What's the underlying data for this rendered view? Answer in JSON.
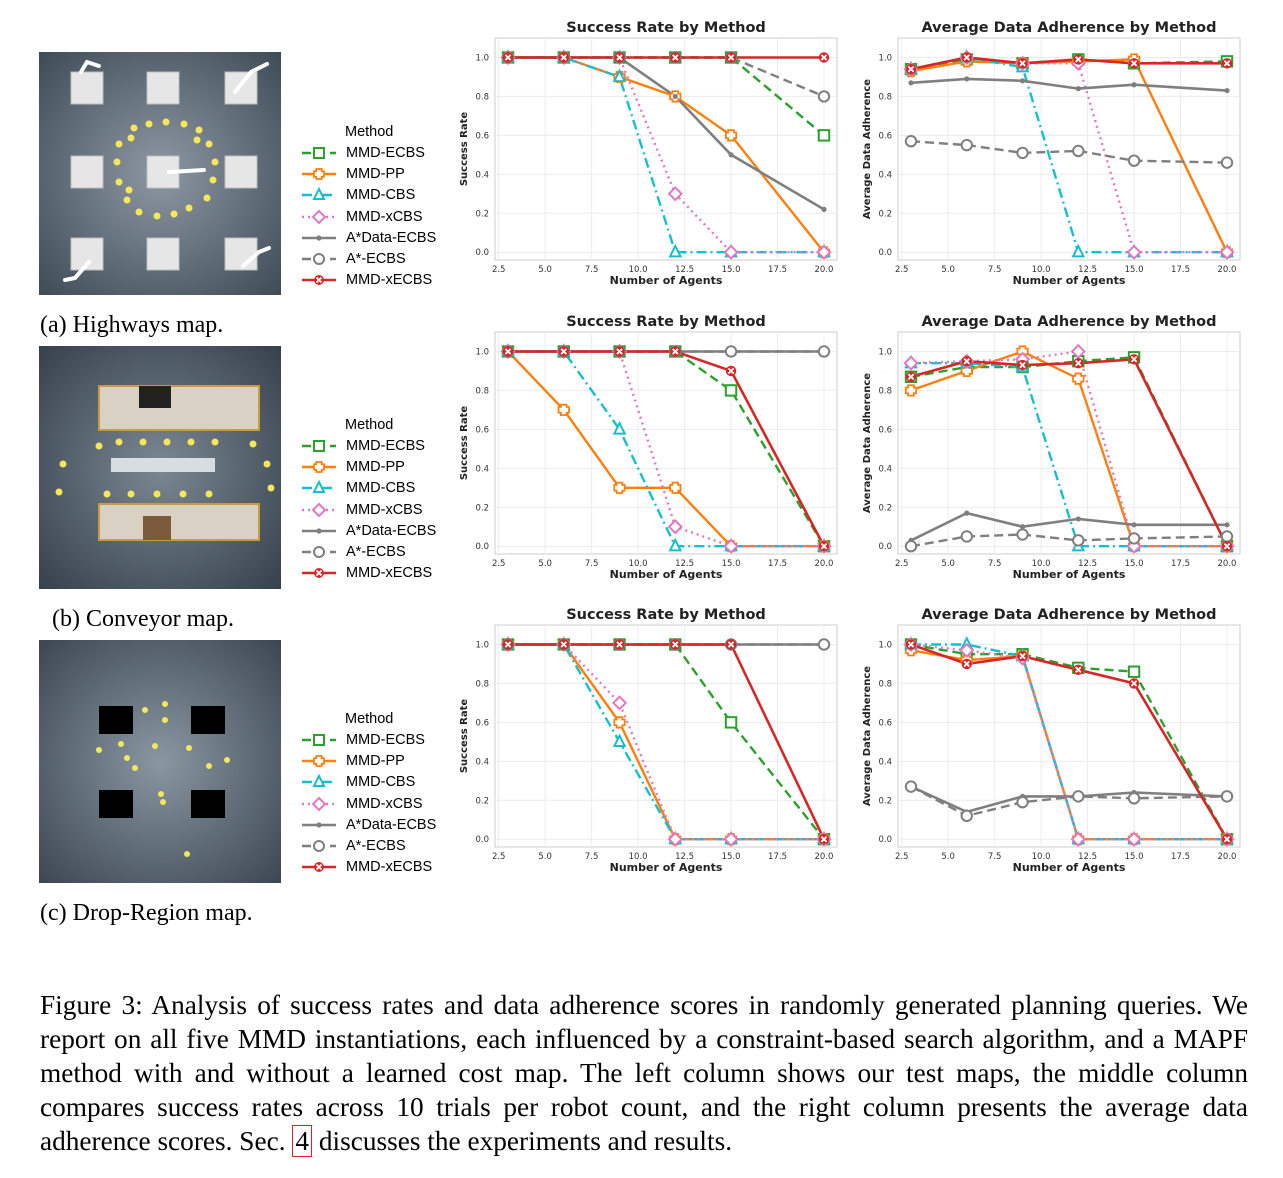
{
  "legend": {
    "title": "Method",
    "items": [
      {
        "name": "MMD-ECBS",
        "color": "#2ca02c",
        "marker": "square",
        "dash": "dashed"
      },
      {
        "name": "MMD-PP",
        "color": "#ff7f0e",
        "marker": "plus",
        "dash": "solid"
      },
      {
        "name": "MMD-CBS",
        "color": "#17becf",
        "marker": "triangle",
        "dash": "dashdot"
      },
      {
        "name": "MMD-xCBS",
        "color": "#e377c2",
        "marker": "diamond",
        "dash": "dotted"
      },
      {
        "name": "A*Data-ECBS",
        "color": "#7f7f7f",
        "marker": "dot",
        "dash": "solid"
      },
      {
        "name": "A*-ECBS",
        "color": "#7f7f7f",
        "marker": "circle",
        "dash": "dashed"
      },
      {
        "name": "MMD-xECBS",
        "color": "#d62728",
        "marker": "x",
        "dash": "solid"
      }
    ]
  },
  "maps": [
    {
      "caption": "(a) Highways map.",
      "icon": "highways-map"
    },
    {
      "caption": "(b) Conveyor map.",
      "icon": "conveyor-map"
    },
    {
      "caption": "(c) Drop-Region map.",
      "icon": "drop-region-map"
    }
  ],
  "caption": {
    "text_before": "Figure 3:  Analysis of success rates and data adherence scores in randomly generated planning queries.  We report on all five MMD instantiations, each influenced by a constraint-based search algorithm, and a MAPF method with and without a learned cost map.  The left column shows our test maps, the middle column compares success rates across 10 trials per robot count, and the right column presents the average data adherence scores.  Sec. ",
    "ref": "4",
    "text_after": " discusses the experiments and results."
  },
  "chart_data": [
    {
      "type": "line",
      "title": "Success Rate by Method",
      "xlabel": "Number of Agents",
      "ylabel": "Success Rate",
      "x": [
        3,
        6,
        9,
        12,
        15,
        20
      ],
      "xlim": [
        2.3,
        20.7
      ],
      "ylim": [
        -0.04,
        1.1
      ],
      "xticks": [
        "2.5",
        "5.0",
        "7.5",
        "10.0",
        "12.5",
        "15.0",
        "17.5",
        "20.0"
      ],
      "yticks": [
        "0.0",
        "0.2",
        "0.4",
        "0.6",
        "0.8",
        "1.0"
      ],
      "grid": true,
      "series": [
        {
          "name": "MMD-ECBS",
          "values": [
            1,
            1,
            1,
            1,
            1,
            0.6
          ]
        },
        {
          "name": "MMD-PP",
          "values": [
            1,
            1,
            0.9,
            0.8,
            0.6,
            0
          ]
        },
        {
          "name": "MMD-CBS",
          "values": [
            1,
            1,
            0.9,
            0,
            0,
            0
          ]
        },
        {
          "name": "MMD-xCBS",
          "values": [
            1,
            1,
            1,
            0.3,
            0,
            0
          ]
        },
        {
          "name": "A*Data-ECBS",
          "values": [
            1,
            1,
            1,
            0.8,
            0.5,
            0.22
          ]
        },
        {
          "name": "A*-ECBS",
          "values": [
            1,
            1,
            1,
            1,
            1,
            0.8
          ]
        },
        {
          "name": "MMD-xECBS",
          "values": [
            1,
            1,
            1,
            1,
            1,
            1
          ]
        }
      ]
    },
    {
      "type": "line",
      "title": "Average Data Adherence by Method",
      "xlabel": "Number of Agents",
      "ylabel": "Average Data Adherence",
      "x": [
        3,
        6,
        9,
        12,
        15,
        20
      ],
      "xlim": [
        2.3,
        20.7
      ],
      "ylim": [
        -0.04,
        1.1
      ],
      "xticks": [
        "2.5",
        "5.0",
        "7.5",
        "10.0",
        "12.5",
        "15.0",
        "17.5",
        "20.0"
      ],
      "yticks": [
        "0.0",
        "0.2",
        "0.4",
        "0.6",
        "0.8",
        "1.0"
      ],
      "grid": true,
      "series": [
        {
          "name": "MMD-ECBS",
          "values": [
            0.94,
            0.99,
            0.97,
            0.99,
            0.97,
            0.98
          ]
        },
        {
          "name": "MMD-PP",
          "values": [
            0.93,
            0.98,
            0.97,
            0.98,
            0.99,
            0
          ]
        },
        {
          "name": "MMD-CBS",
          "values": [
            0.94,
            1.0,
            0.95,
            0,
            0,
            0
          ]
        },
        {
          "name": "MMD-xCBS",
          "values": [
            0.94,
            1.0,
            0.97,
            0.97,
            0,
            0
          ]
        },
        {
          "name": "A*Data-ECBS",
          "values": [
            0.87,
            0.89,
            0.88,
            0.84,
            0.86,
            0.83
          ]
        },
        {
          "name": "A*-ECBS",
          "values": [
            0.57,
            0.55,
            0.51,
            0.52,
            0.47,
            0.46
          ]
        },
        {
          "name": "MMD-xECBS",
          "values": [
            0.94,
            1.0,
            0.97,
            0.99,
            0.97,
            0.97
          ]
        }
      ]
    },
    {
      "type": "line",
      "title": "Success Rate by Method",
      "xlabel": "Number of Agents",
      "ylabel": "Success Rate",
      "x": [
        3,
        6,
        9,
        12,
        15,
        20
      ],
      "xlim": [
        2.3,
        20.7
      ],
      "ylim": [
        -0.04,
        1.1
      ],
      "xticks": [
        "2.5",
        "5.0",
        "7.5",
        "10.0",
        "12.5",
        "15.0",
        "17.5",
        "20.0"
      ],
      "yticks": [
        "0.0",
        "0.2",
        "0.4",
        "0.6",
        "0.8",
        "1.0"
      ],
      "grid": true,
      "series": [
        {
          "name": "MMD-ECBS",
          "values": [
            1,
            1,
            1,
            1,
            0.8,
            0
          ]
        },
        {
          "name": "MMD-PP",
          "values": [
            1,
            0.7,
            0.3,
            0.3,
            0,
            0
          ]
        },
        {
          "name": "MMD-CBS",
          "values": [
            1,
            1,
            0.6,
            0,
            0,
            0
          ]
        },
        {
          "name": "MMD-xCBS",
          "values": [
            1,
            1,
            1,
            0.1,
            0,
            0
          ]
        },
        {
          "name": "A*Data-ECBS",
          "values": [
            1,
            1,
            1,
            1,
            1,
            1
          ]
        },
        {
          "name": "A*-ECBS",
          "values": [
            1,
            1,
            1,
            1,
            1,
            1
          ]
        },
        {
          "name": "MMD-xECBS",
          "values": [
            1,
            1,
            1,
            1,
            0.9,
            0
          ]
        }
      ]
    },
    {
      "type": "line",
      "title": "Average Data Adherence by Method",
      "xlabel": "Number of Agents",
      "ylabel": "Average Data Adherence",
      "x": [
        3,
        6,
        9,
        12,
        15,
        20
      ],
      "xlim": [
        2.3,
        20.7
      ],
      "ylim": [
        -0.04,
        1.1
      ],
      "xticks": [
        "2.5",
        "5.0",
        "7.5",
        "10.0",
        "12.5",
        "15.0",
        "17.5",
        "20.0"
      ],
      "yticks": [
        "0.0",
        "0.2",
        "0.4",
        "0.6",
        "0.8",
        "1.0"
      ],
      "grid": true,
      "series": [
        {
          "name": "MMD-ECBS",
          "values": [
            0.87,
            0.92,
            0.92,
            0.95,
            0.97,
            0
          ]
        },
        {
          "name": "MMD-PP",
          "values": [
            0.8,
            0.9,
            1.0,
            0.86,
            0,
            0
          ]
        },
        {
          "name": "MMD-CBS",
          "values": [
            0.94,
            0.94,
            0.92,
            0,
            0,
            0
          ]
        },
        {
          "name": "MMD-xCBS",
          "values": [
            0.94,
            0.95,
            0.96,
            1.0,
            0,
            0
          ]
        },
        {
          "name": "A*Data-ECBS",
          "values": [
            0.03,
            0.17,
            0.1,
            0.14,
            0.11,
            0.11
          ]
        },
        {
          "name": "A*-ECBS",
          "values": [
            0,
            0.05,
            0.06,
            0.03,
            0.04,
            0.05
          ]
        },
        {
          "name": "MMD-xECBS",
          "values": [
            0.87,
            0.95,
            0.93,
            0.94,
            0.96,
            0
          ]
        }
      ]
    },
    {
      "type": "line",
      "title": "Success Rate by Method",
      "xlabel": "Number of Agents",
      "ylabel": "Success Rate",
      "x": [
        3,
        6,
        9,
        12,
        15,
        20
      ],
      "xlim": [
        2.3,
        20.7
      ],
      "ylim": [
        -0.04,
        1.1
      ],
      "xticks": [
        "2.5",
        "5.0",
        "7.5",
        "10.0",
        "12.5",
        "15.0",
        "17.5",
        "20.0"
      ],
      "yticks": [
        "0.0",
        "0.2",
        "0.4",
        "0.6",
        "0.8",
        "1.0"
      ],
      "grid": true,
      "series": [
        {
          "name": "MMD-ECBS",
          "values": [
            1,
            1,
            1,
            1,
            0.6,
            0
          ]
        },
        {
          "name": "MMD-PP",
          "values": [
            1,
            1,
            0.6,
            0,
            0,
            0
          ]
        },
        {
          "name": "MMD-CBS",
          "values": [
            1,
            1,
            0.5,
            0,
            0,
            0
          ]
        },
        {
          "name": "MMD-xCBS",
          "values": [
            1,
            1,
            0.7,
            0,
            0,
            0
          ]
        },
        {
          "name": "A*Data-ECBS",
          "values": [
            1,
            1,
            1,
            1,
            1,
            1
          ]
        },
        {
          "name": "A*-ECBS",
          "values": [
            1,
            1,
            1,
            1,
            1,
            1
          ]
        },
        {
          "name": "MMD-xECBS",
          "values": [
            1,
            1,
            1,
            1,
            1,
            0
          ]
        }
      ]
    },
    {
      "type": "line",
      "title": "Average Data Adherence by Method",
      "xlabel": "Number of Agents",
      "ylabel": "Average Data Adherence",
      "x": [
        3,
        6,
        9,
        12,
        15,
        20
      ],
      "xlim": [
        2.3,
        20.7
      ],
      "ylim": [
        -0.04,
        1.1
      ],
      "xticks": [
        "2.5",
        "5.0",
        "7.5",
        "10.0",
        "12.5",
        "15.0",
        "17.5",
        "20.0"
      ],
      "yticks": [
        "0.0",
        "0.2",
        "0.4",
        "0.6",
        "0.8",
        "1.0"
      ],
      "grid": true,
      "series": [
        {
          "name": "MMD-ECBS",
          "values": [
            1.0,
            0.95,
            0.95,
            0.88,
            0.86,
            0
          ]
        },
        {
          "name": "MMD-PP",
          "values": [
            0.97,
            0.92,
            0.94,
            0,
            0,
            0
          ]
        },
        {
          "name": "MMD-CBS",
          "values": [
            1.0,
            1.0,
            0.94,
            0,
            0,
            0
          ]
        },
        {
          "name": "MMD-xCBS",
          "values": [
            1.0,
            0.97,
            0.93,
            0,
            0,
            0
          ]
        },
        {
          "name": "A*Data-ECBS",
          "values": [
            0.27,
            0.14,
            0.22,
            0.22,
            0.24,
            0.22
          ]
        },
        {
          "name": "A*-ECBS",
          "values": [
            0.27,
            0.12,
            0.19,
            0.22,
            0.21,
            0.22
          ]
        },
        {
          "name": "MMD-xECBS",
          "values": [
            1.0,
            0.9,
            0.94,
            0.87,
            0.8,
            0
          ]
        }
      ]
    }
  ]
}
